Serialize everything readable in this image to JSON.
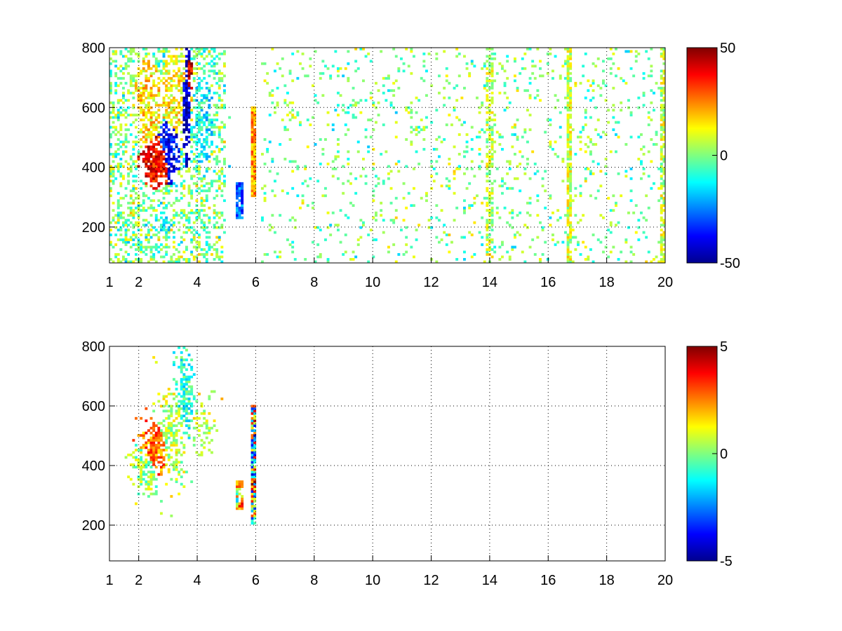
{
  "figure": {
    "background": "#ffffff",
    "colormap": "jet",
    "colormap_stops": [
      "#00008f",
      "#0000ff",
      "#00ffff",
      "#ffff00",
      "#ff0000",
      "#800000"
    ]
  },
  "chart_data": [
    {
      "type": "heatmap",
      "title": "",
      "xlabel": "",
      "ylabel": "",
      "xlim": [
        1,
        20
      ],
      "ylim": [
        80,
        800
      ],
      "x_ticks": [
        1,
        2,
        4,
        6,
        8,
        10,
        12,
        14,
        16,
        18,
        20
      ],
      "x_tick_labels": [
        "1",
        "2",
        "4",
        "6",
        "8",
        "10",
        "12",
        "14",
        "16",
        "18",
        "20"
      ],
      "y_ticks": [
        200,
        400,
        600,
        800
      ],
      "y_tick_labels": [
        "200",
        "400",
        "600",
        "800"
      ],
      "grid": true,
      "colorbar": {
        "clim": [
          -50,
          50
        ],
        "ticks": [
          -50,
          0,
          50
        ],
        "tick_labels": [
          "-50",
          "0",
          "50"
        ],
        "placement": "right"
      },
      "patterns": [
        {
          "kind": "blob",
          "x": 2.6,
          "y": 420,
          "sx": 0.45,
          "sy": 70,
          "v": 38,
          "density": 0.92
        },
        {
          "kind": "blob",
          "x": 3.0,
          "y": 450,
          "sx": 0.35,
          "sy": 90,
          "v": -38,
          "density": 0.75
        },
        {
          "kind": "blob",
          "x": 2.3,
          "y": 600,
          "sx": 0.4,
          "sy": 150,
          "v": 15,
          "density": 0.7
        },
        {
          "kind": "blob",
          "x": 3.3,
          "y": 650,
          "sx": 0.5,
          "sy": 160,
          "v": 12,
          "density": 0.6
        },
        {
          "kind": "blob",
          "x": 3.65,
          "y": 620,
          "sx": 0.1,
          "sy": 160,
          "v": -45,
          "density": 0.95
        },
        {
          "kind": "blob",
          "x": 3.75,
          "y": 700,
          "sx": 0.06,
          "sy": 60,
          "v": 42,
          "density": 0.9
        },
        {
          "kind": "blob",
          "x": 4.2,
          "y": 560,
          "sx": 0.35,
          "sy": 160,
          "v": -12,
          "density": 0.6
        },
        {
          "kind": "blob",
          "x": 2.8,
          "y": 220,
          "sx": 0.45,
          "sy": 50,
          "v": -10,
          "density": 0.5
        },
        {
          "kind": "stripe",
          "x": 5.95,
          "y0": 300,
          "y1": 600,
          "v": 22,
          "density": 0.95
        },
        {
          "kind": "stripe",
          "x": 5.45,
          "y0": 230,
          "y1": 350,
          "v": -28,
          "density": 0.9
        },
        {
          "kind": "stripe",
          "x": 16.75,
          "y0": 80,
          "y1": 800,
          "v": 8,
          "density": 0.85
        },
        {
          "kind": "stripe",
          "x": 14.0,
          "y0": 80,
          "y1": 800,
          "v": 6,
          "density": 0.55
        },
        {
          "kind": "stripe",
          "x": 19.9,
          "y0": 80,
          "y1": 800,
          "v": 7,
          "density": 0.7
        },
        {
          "kind": "noise",
          "x0": 1.0,
          "x1": 5.0,
          "y0": 80,
          "y1": 800,
          "v": 10,
          "density": 0.35
        },
        {
          "kind": "noise",
          "x0": 6.2,
          "x1": 20.0,
          "y0": 80,
          "y1": 800,
          "v": 7,
          "density": 0.08
        }
      ]
    },
    {
      "type": "heatmap",
      "title": "",
      "xlabel": "",
      "ylabel": "",
      "xlim": [
        1,
        20
      ],
      "ylim": [
        80,
        800
      ],
      "x_ticks": [
        1,
        2,
        4,
        6,
        8,
        10,
        12,
        14,
        16,
        18,
        20
      ],
      "x_tick_labels": [
        "1",
        "2",
        "4",
        "6",
        "8",
        "10",
        "12",
        "14",
        "16",
        "18",
        "20"
      ],
      "y_ticks": [
        200,
        400,
        600,
        800
      ],
      "y_tick_labels": [
        "200",
        "400",
        "600",
        "800"
      ],
      "grid": true,
      "colorbar": {
        "clim": [
          -5,
          5
        ],
        "ticks": [
          -5,
          0,
          5
        ],
        "tick_labels": [
          "-5",
          "0",
          "5"
        ],
        "placement": "right"
      },
      "patterns": [
        {
          "kind": "blob",
          "x": 2.6,
          "y": 460,
          "sx": 0.35,
          "sy": 60,
          "v": 2.6,
          "density": 0.9
        },
        {
          "kind": "blob",
          "x": 2.2,
          "y": 390,
          "sx": 0.3,
          "sy": 50,
          "v": 0.3,
          "density": 0.85
        },
        {
          "kind": "blob",
          "x": 3.1,
          "y": 500,
          "sx": 0.35,
          "sy": 90,
          "v": 0.6,
          "density": 0.8
        },
        {
          "kind": "blob",
          "x": 3.6,
          "y": 640,
          "sx": 0.18,
          "sy": 120,
          "v": -0.8,
          "density": 0.8
        },
        {
          "kind": "blob",
          "x": 4.15,
          "y": 540,
          "sx": 0.25,
          "sy": 60,
          "v": 0.9,
          "density": 0.5
        },
        {
          "kind": "stripe",
          "x": 5.95,
          "y0": 200,
          "y1": 600,
          "v": 0.0,
          "spread": 4.5,
          "density": 0.95
        },
        {
          "kind": "stripe",
          "x": 5.45,
          "y0": 250,
          "y1": 350,
          "v": 1.0,
          "spread": 2.5,
          "density": 0.8
        }
      ]
    }
  ]
}
